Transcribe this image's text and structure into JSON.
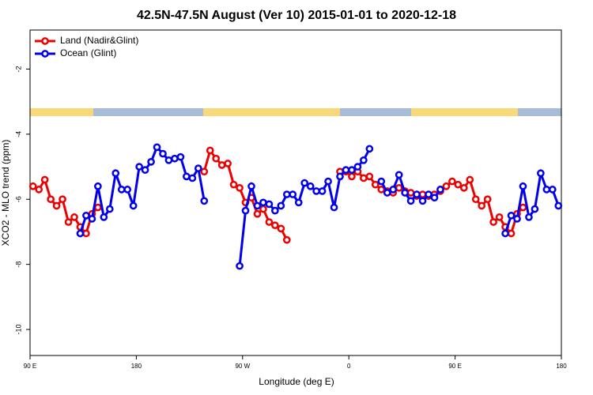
{
  "chart_data": {
    "type": "line",
    "title": "42.5N-47.5N August (Ver 10)   2015-01-01 to 2020-12-18",
    "xlabel": "Longitude (deg E)",
    "ylabel": "XCO2 - MLO trend (ppm)",
    "x": [
      92.5,
      97.5,
      102.5,
      107.5,
      112.5,
      117.5,
      122.5,
      127.5,
      132.5,
      137.5,
      142.5,
      147.5,
      152.5,
      157.5,
      162.5,
      167.5,
      172.5,
      177.5,
      182.5,
      187.5,
      192.5,
      197.5,
      202.5,
      207.5,
      212.5,
      217.5,
      222.5,
      227.5,
      232.5,
      237.5,
      242.5,
      247.5,
      252.5,
      257.5,
      262.5,
      267.5,
      272.5,
      277.5,
      282.5,
      287.5,
      292.5,
      297.5,
      302.5,
      307.5,
      312.5,
      317.5,
      322.5,
      327.5,
      332.5,
      337.5,
      342.5,
      347.5,
      352.5,
      357.5,
      362.5,
      367.5,
      372.5,
      377.5,
      382.5,
      387.5,
      392.5,
      397.5,
      402.5,
      407.5,
      412.5,
      417.5,
      422.5,
      427.5,
      432.5,
      437.5,
      442.5,
      447.5,
      452.5,
      457.5,
      462.5,
      467.5,
      472.5,
      477.5,
      482.5,
      487.5,
      492.5,
      497.5,
      502.5,
      507.5,
      512.5,
      517.5,
      522.5,
      527.5,
      532.5,
      537.5
    ],
    "series": [
      {
        "name": "Land (Nadir&Glint)",
        "color": "#ee0000",
        "values": [
          -5.6,
          -5.7,
          -5.4,
          -6.0,
          -6.2,
          -6.0,
          -6.7,
          -6.55,
          -6.85,
          -7.05,
          -6.45,
          -6.25,
          null,
          null,
          null,
          null,
          null,
          null,
          null,
          null,
          null,
          null,
          null,
          null,
          null,
          null,
          null,
          null,
          null,
          -5.15,
          -4.5,
          -4.75,
          -4.95,
          -4.9,
          -5.55,
          -5.65,
          -6.1,
          -5.95,
          -6.45,
          -6.3,
          -6.7,
          -6.8,
          -6.9,
          -7.25,
          null,
          null,
          null,
          null,
          null,
          null,
          null,
          null,
          -5.15,
          -5.15,
          -5.3,
          -5.15,
          -5.35,
          -5.3,
          -5.55,
          -5.7,
          -5.75,
          -5.8,
          -5.65,
          -5.75,
          -5.8,
          -5.9,
          -5.85,
          -5.9,
          -5.85,
          -5.75,
          -5.6,
          -5.45,
          -5.55,
          -5.65,
          -5.4,
          -6.0,
          -6.2,
          -6.0,
          -6.7,
          -6.55,
          -6.85,
          -7.05,
          -6.45,
          -6.25,
          null,
          null,
          null,
          null,
          null,
          null
        ]
      },
      {
        "name": "Ocean (Glint)",
        "color": "#0000ee",
        "values": [
          null,
          null,
          null,
          null,
          null,
          null,
          null,
          null,
          -7.05,
          -6.5,
          -6.6,
          -5.6,
          -6.55,
          -6.3,
          -5.2,
          -5.7,
          -5.7,
          -6.2,
          -5.0,
          -5.1,
          -4.85,
          -4.4,
          -4.6,
          -4.8,
          -4.75,
          -4.7,
          -5.3,
          -5.35,
          -5.05,
          -6.05,
          null,
          null,
          null,
          null,
          null,
          -8.05,
          -6.35,
          -5.6,
          -6.2,
          -6.1,
          -6.15,
          -6.35,
          -6.2,
          -5.85,
          -5.85,
          -6.1,
          -5.5,
          -5.6,
          -5.75,
          -5.75,
          -5.45,
          -6.25,
          -5.3,
          -5.1,
          -5.1,
          -5.0,
          -4.8,
          -4.45,
          null,
          -5.45,
          -5.8,
          -5.7,
          -5.25,
          -5.8,
          -6.05,
          -5.85,
          -6.05,
          -5.85,
          -5.95,
          -5.7,
          null,
          null,
          null,
          null,
          null,
          null,
          null,
          null,
          null,
          null,
          -7.05,
          -6.5,
          -6.6,
          -5.6,
          -6.55,
          -6.3,
          -5.2,
          -5.7,
          -5.7,
          -6.2
        ]
      }
    ],
    "xlim": [
      90,
      540
    ],
    "xticks": [
      {
        "value": 90,
        "label": "90 E"
      },
      180,
      {
        "value": 270,
        "label": "90 W"
      },
      {
        "value": 360,
        "label": "0"
      },
      {
        "value": 450,
        "label": "90 E"
      },
      {
        "value": 540,
        "label": "180"
      }
    ],
    "ylim": [
      -10.8,
      -0.8
    ],
    "yticks": [
      -10,
      -8,
      -6,
      -4,
      -2
    ],
    "legend": "top-left"
  }
}
